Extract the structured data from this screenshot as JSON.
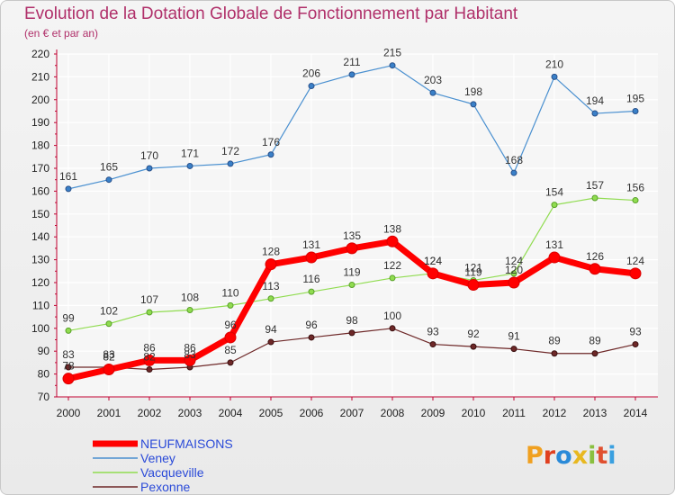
{
  "title": "Evolution de la Dotation Globale de Fonctionnement par Habitant",
  "subtitle": "(en € et par an)",
  "logo": {
    "text": "Proxiti"
  },
  "colors": {
    "title": "#b0306a",
    "axis_text": "#222222",
    "legend_text": "#2a4ad8"
  },
  "chart_data": {
    "type": "line",
    "title": "Evolution de la Dotation Globale de Fonctionnement par Habitant",
    "subtitle": "(en € et par an)",
    "x": [
      "2000",
      "2001",
      "2002",
      "2003",
      "2004",
      "2005",
      "2006",
      "2007",
      "2008",
      "2009",
      "2010",
      "2011",
      "2012",
      "2013",
      "2014"
    ],
    "ylim": [
      70,
      220
    ],
    "yticks": [
      70,
      80,
      90,
      100,
      110,
      120,
      130,
      140,
      150,
      160,
      170,
      180,
      190,
      200,
      210,
      220
    ],
    "grid": true,
    "legend_position": "bottom-left",
    "series": [
      {
        "name": "NEUFMAISONS",
        "color": "#ff0000",
        "values": [
          78,
          82,
          86,
          86,
          96,
          128,
          131,
          135,
          138,
          124,
          119,
          120,
          131,
          126,
          124
        ]
      },
      {
        "name": "Veney",
        "color": "#4a90d0",
        "values": [
          161,
          165,
          170,
          171,
          172,
          176,
          206,
          211,
          215,
          203,
          198,
          168,
          210,
          194,
          195
        ]
      },
      {
        "name": "Vacqueville",
        "color": "#90dc50",
        "values": [
          99,
          102,
          107,
          108,
          110,
          113,
          116,
          119,
          122,
          124,
          121,
          124,
          154,
          157,
          156
        ]
      },
      {
        "name": "Pexonne",
        "color": "#6e2828",
        "values": [
          83,
          83,
          82,
          83,
          85,
          94,
          96,
          98,
          100,
          93,
          92,
          91,
          89,
          89,
          93
        ]
      }
    ]
  }
}
